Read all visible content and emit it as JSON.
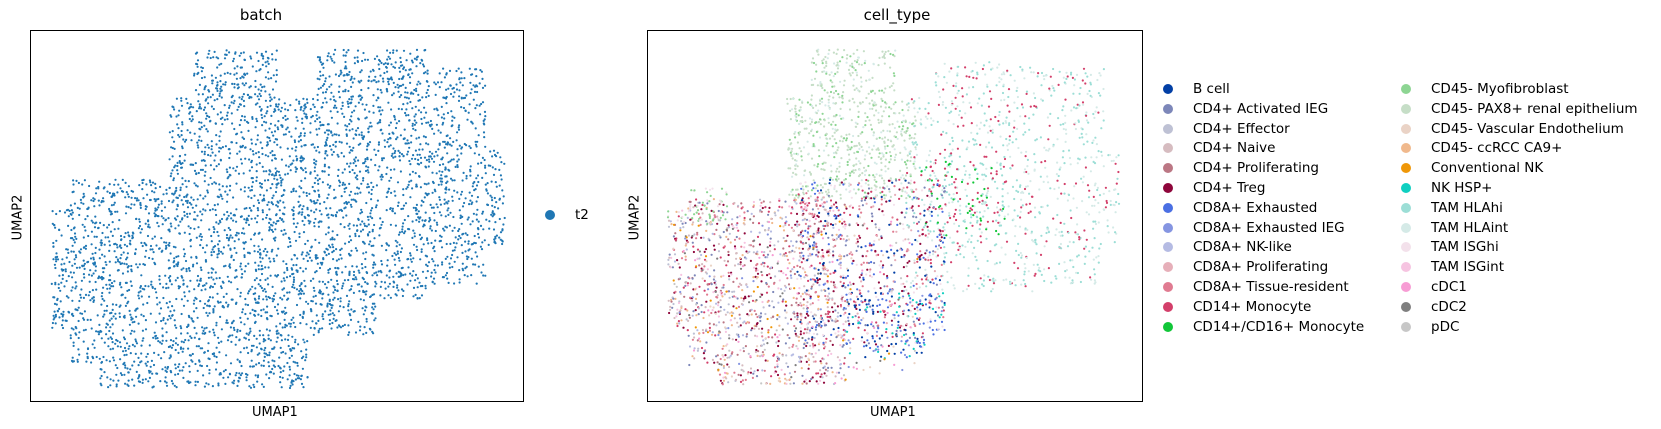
{
  "chart_data": [
    {
      "type": "scatter",
      "title": "batch",
      "xlabel": "UMAP1",
      "ylabel": "UMAP2",
      "xticks": [],
      "yticks": [],
      "legend_placement": "right",
      "series": [
        {
          "name": "t2",
          "color": "#1f77b4",
          "regions": [
            {
              "x": [
                -6,
                -1
              ],
              "y": [
                -4,
                2
              ]
            },
            {
              "x": [
                -3,
                1
              ],
              "y": [
                1,
                6
              ]
            },
            {
              "x": [
                0,
                5
              ],
              "y": [
                -2,
                5
              ]
            },
            {
              "x": [
                -2,
                3
              ],
              "y": [
                -3,
                1
              ]
            }
          ]
        }
      ]
    },
    {
      "type": "scatter",
      "title": "cell_type",
      "xlabel": "UMAP1",
      "ylabel": "UMAP2",
      "xticks": [],
      "yticks": [],
      "legend_placement": "right",
      "series": [
        {
          "name": "B cell",
          "color": "#023fa5"
        },
        {
          "name": "CD4+ Activated IEG",
          "color": "#7d87b9"
        },
        {
          "name": "CD4+ Effector",
          "color": "#bec1d4"
        },
        {
          "name": "CD4+ Naive",
          "color": "#d6bcc0"
        },
        {
          "name": "CD4+ Proliferating",
          "color": "#bb7784"
        },
        {
          "name": "CD4+ Treg",
          "color": "#8e063b"
        },
        {
          "name": "CD8A+ Exhausted",
          "color": "#4a6fe3"
        },
        {
          "name": "CD8A+ Exhausted IEG",
          "color": "#8595e1"
        },
        {
          "name": "CD8A+ NK-like",
          "color": "#b5bbe3"
        },
        {
          "name": "CD8A+ Proliferating",
          "color": "#e6afb9"
        },
        {
          "name": "CD8A+ Tissue-resident",
          "color": "#e07b91"
        },
        {
          "name": "CD14+ Monocyte",
          "color": "#d33f6a"
        },
        {
          "name": "CD14+/CD16+ Monocyte",
          "color": "#11c638"
        },
        {
          "name": "CD45- Myofibroblast",
          "color": "#8dd593"
        },
        {
          "name": "CD45- PAX8+ renal epithelium",
          "color": "#c6dec7"
        },
        {
          "name": "CD45- Vascular Endothelium",
          "color": "#ead3c6"
        },
        {
          "name": "CD45- ccRCC CA9+",
          "color": "#f0b98d"
        },
        {
          "name": "Conventional NK",
          "color": "#ef9708"
        },
        {
          "name": "NK HSP+",
          "color": "#0fcfc0"
        },
        {
          "name": "TAM HLAhi",
          "color": "#9cded6"
        },
        {
          "name": "TAM HLAint",
          "color": "#d5eae7"
        },
        {
          "name": "TAM ISGhi",
          "color": "#f3e1eb"
        },
        {
          "name": "TAM ISGint",
          "color": "#f6c4e1"
        },
        {
          "name": "cDC1",
          "color": "#f79cd4"
        },
        {
          "name": "cDC2",
          "color": "#7f7f7f"
        },
        {
          "name": "pDC",
          "color": "#c7c7c7"
        }
      ]
    }
  ]
}
